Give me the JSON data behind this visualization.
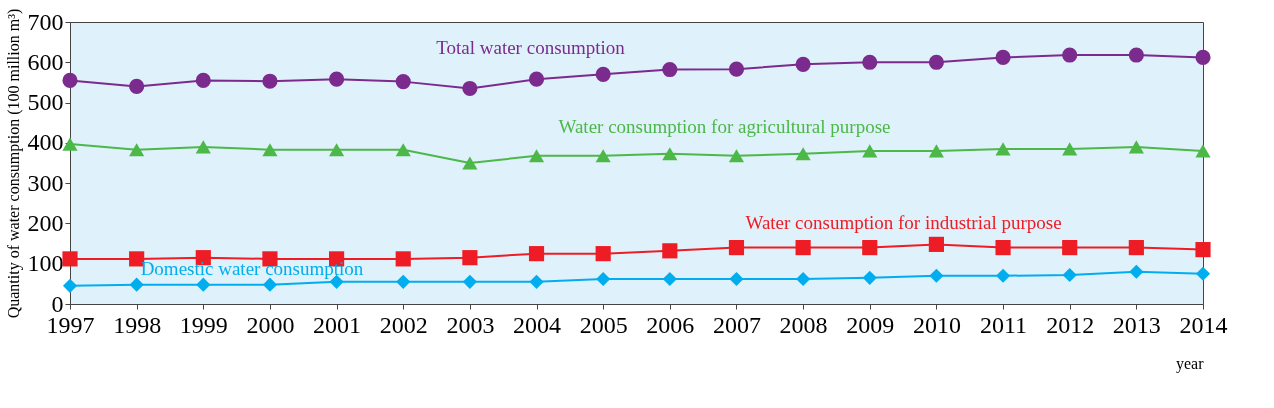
{
  "chart_data": {
    "type": "line",
    "ylabel": "Quantity of water consumption (100 million m³)",
    "xlabel": "year",
    "categories": [
      "1997",
      "1998",
      "1999",
      "2000",
      "2001",
      "2002",
      "2003",
      "2004",
      "2005",
      "2006",
      "2007",
      "2008",
      "2009",
      "2010",
      "2011",
      "2012",
      "2013",
      "2014"
    ],
    "ylim": [
      0,
      700
    ],
    "yticks": [
      0,
      100,
      200,
      300,
      400,
      500,
      600,
      700
    ],
    "grid": false,
    "series": [
      {
        "name": "Total water consumption",
        "color": "#7b2a8e",
        "marker": "circle",
        "values": [
          555,
          540,
          555,
          553,
          558,
          552,
          535,
          558,
          570,
          582,
          583,
          595,
          600,
          600,
          612,
          618,
          618,
          612
        ]
      },
      {
        "name": "Water consumption for agricultural purpose",
        "color": "#4cb848",
        "marker": "triangle",
        "values": [
          397,
          383,
          390,
          383,
          383,
          383,
          350,
          368,
          368,
          373,
          368,
          373,
          380,
          380,
          385,
          385,
          390,
          380
        ]
      },
      {
        "name": "Water consumption for industrial purpose",
        "color": "#ee1c25",
        "marker": "square",
        "values": [
          112,
          112,
          115,
          112,
          112,
          112,
          115,
          125,
          125,
          132,
          140,
          140,
          140,
          148,
          140,
          140,
          140,
          135
        ]
      },
      {
        "name": "Domestic water consumption",
        "color": "#00aeef",
        "marker": "diamond",
        "values": [
          45,
          48,
          48,
          48,
          55,
          55,
          55,
          55,
          62,
          62,
          62,
          62,
          65,
          70,
          70,
          72,
          80,
          75
        ]
      }
    ]
  }
}
